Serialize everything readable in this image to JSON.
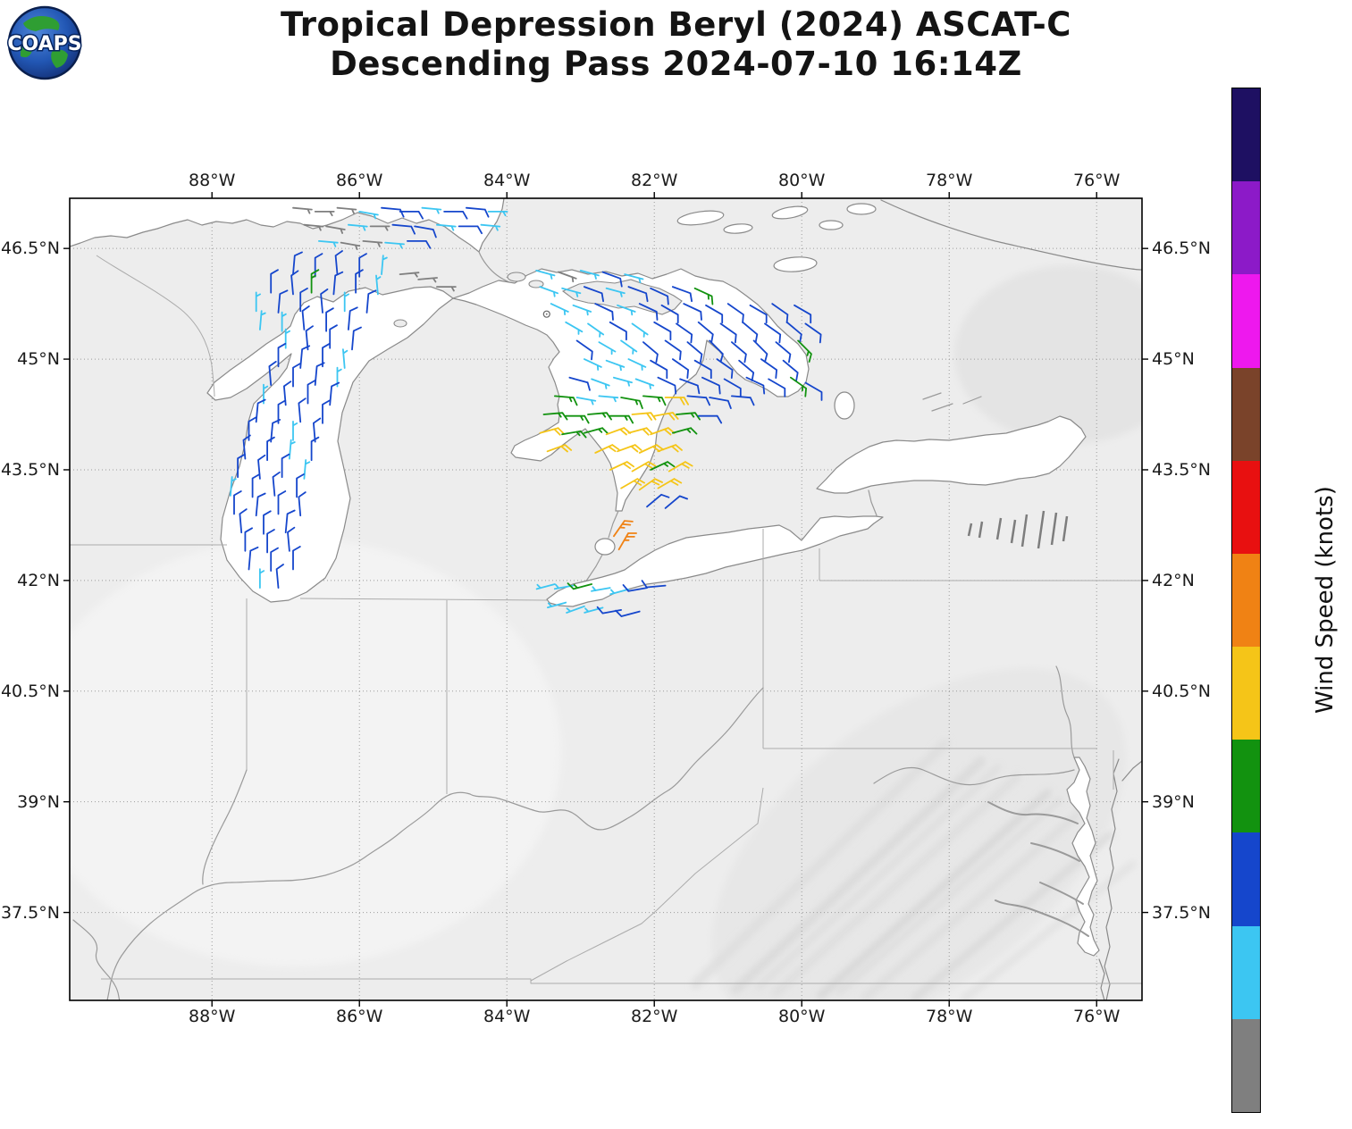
{
  "logo": {
    "text": "COAPS"
  },
  "title": {
    "line1": "Tropical Depression Beryl (2024) ASCAT-C",
    "line2": "Descending Pass 2024-07-10 16:14Z"
  },
  "map": {
    "lon_labels": [
      "88°W",
      "86°W",
      "84°W",
      "82°W",
      "80°W",
      "78°W",
      "76°W"
    ],
    "lat_labels": [
      "46.5°N",
      "45°N",
      "43.5°N",
      "42°N",
      "40.5°N",
      "39°N",
      "37.5°N"
    ]
  },
  "colorbar": {
    "label": "Wind Speed (knots)",
    "unit": "knots",
    "min": 0,
    "max": 55,
    "ticks": [
      0,
      5,
      10,
      15,
      20,
      25,
      30,
      35,
      40,
      45,
      50
    ],
    "segments": [
      {
        "min": 0,
        "max": 5,
        "color": "#7f7f7f"
      },
      {
        "min": 5,
        "max": 10,
        "color": "#3cc6f2"
      },
      {
        "min": 10,
        "max": 15,
        "color": "#1546cc"
      },
      {
        "min": 15,
        "max": 20,
        "color": "#12920f"
      },
      {
        "min": 20,
        "max": 25,
        "color": "#f5c518"
      },
      {
        "min": 25,
        "max": 30,
        "color": "#f08214"
      },
      {
        "min": 30,
        "max": 35,
        "color": "#e81010"
      },
      {
        "min": 35,
        "max": 40,
        "color": "#7a432a"
      },
      {
        "min": 40,
        "max": 45,
        "color": "#ee18ee"
      },
      {
        "min": 45,
        "max": 50,
        "color": "#8c1ac8"
      },
      {
        "min": 50,
        "max": 55,
        "color": "#1e1062"
      }
    ]
  },
  "chart_data": {
    "type": "wind_barbs",
    "description": "ASCAT-C scatterometer ocean surface wind barbs [lonW, latN, wind_from_deg, speed_kt]",
    "speed_units": "knots",
    "markers": [
      {
        "lon": 83.46,
        "lat": 45.61,
        "symbol": "station-circle"
      }
    ],
    "barbs": [
      [
        86.9,
        47.05,
        95,
        4
      ],
      [
        86.6,
        47.0,
        90,
        4
      ],
      [
        86.3,
        47.05,
        95,
        4
      ],
      [
        86.0,
        47.0,
        100,
        7
      ],
      [
        85.7,
        47.05,
        95,
        12
      ],
      [
        85.45,
        47.0,
        90,
        12
      ],
      [
        85.15,
        47.05,
        95,
        7
      ],
      [
        84.85,
        47.0,
        90,
        12
      ],
      [
        84.55,
        47.05,
        95,
        12
      ],
      [
        84.25,
        47.0,
        90,
        7
      ],
      [
        86.75,
        46.82,
        95,
        4
      ],
      [
        86.45,
        46.8,
        100,
        4
      ],
      [
        86.15,
        46.82,
        95,
        7
      ],
      [
        85.85,
        46.8,
        90,
        4
      ],
      [
        85.55,
        46.82,
        95,
        12
      ],
      [
        85.25,
        46.8,
        100,
        12
      ],
      [
        84.95,
        46.82,
        95,
        7
      ],
      [
        84.65,
        46.8,
        90,
        12
      ],
      [
        84.35,
        46.82,
        95,
        7
      ],
      [
        86.55,
        46.6,
        95,
        7
      ],
      [
        86.25,
        46.58,
        100,
        4
      ],
      [
        85.95,
        46.6,
        95,
        4
      ],
      [
        85.65,
        46.58,
        95,
        7
      ],
      [
        85.35,
        46.6,
        90,
        12
      ],
      [
        85.45,
        46.15,
        85,
        4
      ],
      [
        85.2,
        46.08,
        85,
        4
      ],
      [
        84.95,
        45.98,
        90,
        4
      ],
      [
        86.9,
        46.15,
        5,
        12
      ],
      [
        86.6,
        46.12,
        0,
        12
      ],
      [
        86.3,
        46.15,
        355,
        12
      ],
      [
        86.0,
        46.12,
        0,
        12
      ],
      [
        85.7,
        46.15,
        5,
        7
      ],
      [
        87.2,
        45.9,
        0,
        12
      ],
      [
        86.9,
        45.88,
        355,
        12
      ],
      [
        86.65,
        45.9,
        0,
        17
      ],
      [
        86.35,
        45.88,
        5,
        12
      ],
      [
        86.05,
        45.9,
        0,
        12
      ],
      [
        85.75,
        45.88,
        355,
        7
      ],
      [
        87.4,
        45.65,
        0,
        7
      ],
      [
        87.1,
        45.63,
        5,
        12
      ],
      [
        86.8,
        45.65,
        0,
        12
      ],
      [
        86.5,
        45.63,
        355,
        12
      ],
      [
        86.2,
        45.65,
        0,
        7
      ],
      [
        85.9,
        45.63,
        5,
        12
      ],
      [
        87.35,
        45.4,
        5,
        7
      ],
      [
        87.05,
        45.38,
        0,
        7
      ],
      [
        86.75,
        45.4,
        355,
        12
      ],
      [
        86.45,
        45.38,
        0,
        12
      ],
      [
        86.15,
        45.4,
        5,
        12
      ],
      [
        87.0,
        45.15,
        0,
        7
      ],
      [
        86.7,
        45.13,
        355,
        12
      ],
      [
        86.4,
        45.15,
        0,
        12
      ],
      [
        86.1,
        45.13,
        5,
        12
      ],
      [
        87.1,
        44.9,
        0,
        12
      ],
      [
        86.8,
        44.88,
        5,
        12
      ],
      [
        86.5,
        44.9,
        0,
        12
      ],
      [
        86.2,
        44.88,
        355,
        7
      ],
      [
        87.2,
        44.65,
        355,
        12
      ],
      [
        86.9,
        44.63,
        0,
        12
      ],
      [
        86.6,
        44.65,
        5,
        12
      ],
      [
        86.3,
        44.63,
        0,
        7
      ],
      [
        87.3,
        44.4,
        0,
        7
      ],
      [
        87.0,
        44.38,
        355,
        12
      ],
      [
        86.7,
        44.4,
        0,
        12
      ],
      [
        86.4,
        44.38,
        5,
        12
      ],
      [
        87.4,
        44.15,
        5,
        12
      ],
      [
        87.1,
        44.13,
        0,
        12
      ],
      [
        86.8,
        44.15,
        355,
        12
      ],
      [
        86.5,
        44.13,
        0,
        12
      ],
      [
        87.5,
        43.9,
        0,
        12
      ],
      [
        87.2,
        43.88,
        5,
        12
      ],
      [
        86.9,
        43.9,
        0,
        7
      ],
      [
        86.6,
        43.88,
        355,
        12
      ],
      [
        87.55,
        43.65,
        355,
        12
      ],
      [
        87.25,
        43.63,
        0,
        12
      ],
      [
        86.95,
        43.65,
        5,
        7
      ],
      [
        86.65,
        43.63,
        0,
        12
      ],
      [
        87.65,
        43.4,
        0,
        12
      ],
      [
        87.35,
        43.38,
        355,
        12
      ],
      [
        87.05,
        43.4,
        0,
        12
      ],
      [
        86.75,
        43.38,
        5,
        7
      ],
      [
        87.75,
        43.15,
        5,
        7
      ],
      [
        87.45,
        43.13,
        0,
        12
      ],
      [
        87.15,
        43.15,
        355,
        12
      ],
      [
        86.85,
        43.13,
        0,
        12
      ],
      [
        87.7,
        42.9,
        0,
        12
      ],
      [
        87.4,
        42.88,
        5,
        12
      ],
      [
        87.1,
        42.9,
        0,
        12
      ],
      [
        86.8,
        42.88,
        355,
        12
      ],
      [
        87.6,
        42.65,
        355,
        12
      ],
      [
        87.3,
        42.63,
        0,
        12
      ],
      [
        87.0,
        42.65,
        5,
        12
      ],
      [
        87.55,
        42.4,
        0,
        12
      ],
      [
        87.25,
        42.38,
        0,
        12
      ],
      [
        86.95,
        42.4,
        355,
        12
      ],
      [
        87.5,
        42.15,
        5,
        12
      ],
      [
        87.2,
        42.13,
        0,
        12
      ],
      [
        86.9,
        42.15,
        0,
        12
      ],
      [
        87.35,
        41.9,
        0,
        7
      ],
      [
        87.1,
        41.9,
        355,
        12
      ],
      [
        83.6,
        46.2,
        105,
        7
      ],
      [
        83.3,
        46.18,
        110,
        4
      ],
      [
        83.0,
        46.2,
        105,
        7
      ],
      [
        82.7,
        46.18,
        110,
        12
      ],
      [
        82.4,
        46.15,
        105,
        7
      ],
      [
        83.55,
        45.98,
        110,
        7
      ],
      [
        83.25,
        45.96,
        105,
        7
      ],
      [
        82.95,
        45.98,
        110,
        12
      ],
      [
        82.65,
        45.96,
        105,
        7
      ],
      [
        82.35,
        45.98,
        110,
        12
      ],
      [
        82.05,
        45.96,
        115,
        12
      ],
      [
        81.75,
        45.98,
        110,
        12
      ],
      [
        81.45,
        45.96,
        115,
        17
      ],
      [
        83.4,
        45.75,
        115,
        7
      ],
      [
        83.1,
        45.73,
        110,
        7
      ],
      [
        82.8,
        45.75,
        115,
        12
      ],
      [
        82.5,
        45.73,
        110,
        7
      ],
      [
        82.2,
        45.75,
        115,
        12
      ],
      [
        81.9,
        45.73,
        120,
        12
      ],
      [
        81.6,
        45.75,
        115,
        12
      ],
      [
        81.3,
        45.73,
        120,
        12
      ],
      [
        81.0,
        45.75,
        125,
        12
      ],
      [
        80.7,
        45.73,
        120,
        12
      ],
      [
        80.4,
        45.75,
        125,
        12
      ],
      [
        80.1,
        45.73,
        120,
        12
      ],
      [
        83.2,
        45.5,
        120,
        7
      ],
      [
        82.9,
        45.48,
        125,
        7
      ],
      [
        82.6,
        45.5,
        120,
        12
      ],
      [
        82.3,
        45.48,
        125,
        7
      ],
      [
        82.0,
        45.5,
        120,
        12
      ],
      [
        81.7,
        45.48,
        125,
        12
      ],
      [
        81.4,
        45.5,
        130,
        12
      ],
      [
        81.1,
        45.48,
        125,
        12
      ],
      [
        80.8,
        45.5,
        130,
        12
      ],
      [
        80.5,
        45.48,
        125,
        12
      ],
      [
        80.2,
        45.5,
        130,
        12
      ],
      [
        79.95,
        45.48,
        125,
        12
      ],
      [
        83.05,
        45.25,
        125,
        12
      ],
      [
        82.75,
        45.23,
        120,
        7
      ],
      [
        82.45,
        45.25,
        125,
        7
      ],
      [
        82.15,
        45.23,
        130,
        12
      ],
      [
        81.85,
        45.25,
        125,
        12
      ],
      [
        81.55,
        45.23,
        130,
        12
      ],
      [
        81.25,
        45.25,
        135,
        12
      ],
      [
        80.95,
        45.23,
        130,
        12
      ],
      [
        80.65,
        45.25,
        135,
        12
      ],
      [
        80.35,
        45.23,
        130,
        12
      ],
      [
        80.05,
        45.25,
        135,
        17
      ],
      [
        82.95,
        45.0,
        115,
        7
      ],
      [
        82.65,
        44.98,
        110,
        7
      ],
      [
        82.35,
        45.0,
        115,
        7
      ],
      [
        82.05,
        44.98,
        120,
        12
      ],
      [
        81.75,
        45.0,
        125,
        12
      ],
      [
        81.45,
        44.98,
        120,
        12
      ],
      [
        81.15,
        45.0,
        125,
        12
      ],
      [
        80.85,
        44.98,
        130,
        12
      ],
      [
        80.55,
        45.0,
        125,
        12
      ],
      [
        80.25,
        44.98,
        130,
        12
      ],
      [
        83.15,
        44.75,
        105,
        12
      ],
      [
        82.85,
        44.73,
        110,
        7
      ],
      [
        82.55,
        44.75,
        105,
        7
      ],
      [
        82.25,
        44.73,
        110,
        7
      ],
      [
        81.95,
        44.75,
        115,
        12
      ],
      [
        81.65,
        44.73,
        110,
        12
      ],
      [
        81.35,
        44.75,
        115,
        12
      ],
      [
        81.05,
        44.73,
        120,
        12
      ],
      [
        80.75,
        44.75,
        115,
        12
      ],
      [
        80.45,
        44.73,
        120,
        12
      ],
      [
        80.15,
        44.75,
        125,
        17
      ],
      [
        79.95,
        44.68,
        120,
        12
      ],
      [
        83.35,
        44.5,
        95,
        17
      ],
      [
        83.05,
        44.48,
        100,
        7
      ],
      [
        82.75,
        44.5,
        95,
        7
      ],
      [
        82.45,
        44.48,
        100,
        17
      ],
      [
        82.15,
        44.5,
        95,
        17
      ],
      [
        81.85,
        44.48,
        90,
        22
      ],
      [
        81.55,
        44.5,
        95,
        12
      ],
      [
        81.25,
        44.48,
        100,
        12
      ],
      [
        80.95,
        44.5,
        95,
        12
      ],
      [
        83.5,
        44.25,
        85,
        17
      ],
      [
        83.2,
        44.23,
        90,
        17
      ],
      [
        82.9,
        44.25,
        85,
        17
      ],
      [
        82.6,
        44.23,
        90,
        17
      ],
      [
        82.3,
        44.25,
        85,
        22
      ],
      [
        82.0,
        44.23,
        80,
        22
      ],
      [
        81.7,
        44.25,
        85,
        17
      ],
      [
        81.4,
        44.23,
        90,
        12
      ],
      [
        83.55,
        44.0,
        75,
        22
      ],
      [
        83.25,
        43.98,
        80,
        17
      ],
      [
        82.95,
        44.0,
        75,
        17
      ],
      [
        82.65,
        43.98,
        70,
        22
      ],
      [
        82.35,
        44.0,
        75,
        22
      ],
      [
        82.05,
        43.98,
        70,
        22
      ],
      [
        81.75,
        44.0,
        75,
        17
      ],
      [
        83.45,
        43.75,
        70,
        22
      ],
      [
        82.8,
        43.73,
        65,
        22
      ],
      [
        82.5,
        43.75,
        70,
        22
      ],
      [
        82.2,
        43.73,
        65,
        22
      ],
      [
        81.95,
        43.75,
        70,
        22
      ],
      [
        82.6,
        43.5,
        65,
        22
      ],
      [
        82.3,
        43.48,
        60,
        22
      ],
      [
        82.05,
        43.5,
        65,
        17
      ],
      [
        81.8,
        43.48,
        60,
        22
      ],
      [
        82.45,
        43.25,
        60,
        22
      ],
      [
        82.2,
        43.23,
        55,
        22
      ],
      [
        81.95,
        43.25,
        60,
        22
      ],
      [
        82.1,
        43.0,
        50,
        12
      ],
      [
        81.85,
        42.98,
        50,
        12
      ],
      [
        82.55,
        42.6,
        35,
        27
      ],
      [
        82.48,
        42.42,
        30,
        27
      ],
      [
        83.35,
        41.95,
        255,
        7
      ],
      [
        83.1,
        41.93,
        260,
        7
      ],
      [
        82.85,
        41.95,
        255,
        17
      ],
      [
        82.6,
        41.9,
        260,
        7
      ],
      [
        82.35,
        41.88,
        255,
        7
      ],
      [
        82.1,
        41.9,
        260,
        12
      ],
      [
        81.85,
        41.93,
        265,
        12
      ],
      [
        83.2,
        41.7,
        255,
        7
      ],
      [
        82.95,
        41.65,
        250,
        7
      ],
      [
        82.7,
        41.63,
        255,
        7
      ],
      [
        82.45,
        41.6,
        260,
        12
      ],
      [
        82.2,
        41.58,
        255,
        12
      ]
    ]
  }
}
